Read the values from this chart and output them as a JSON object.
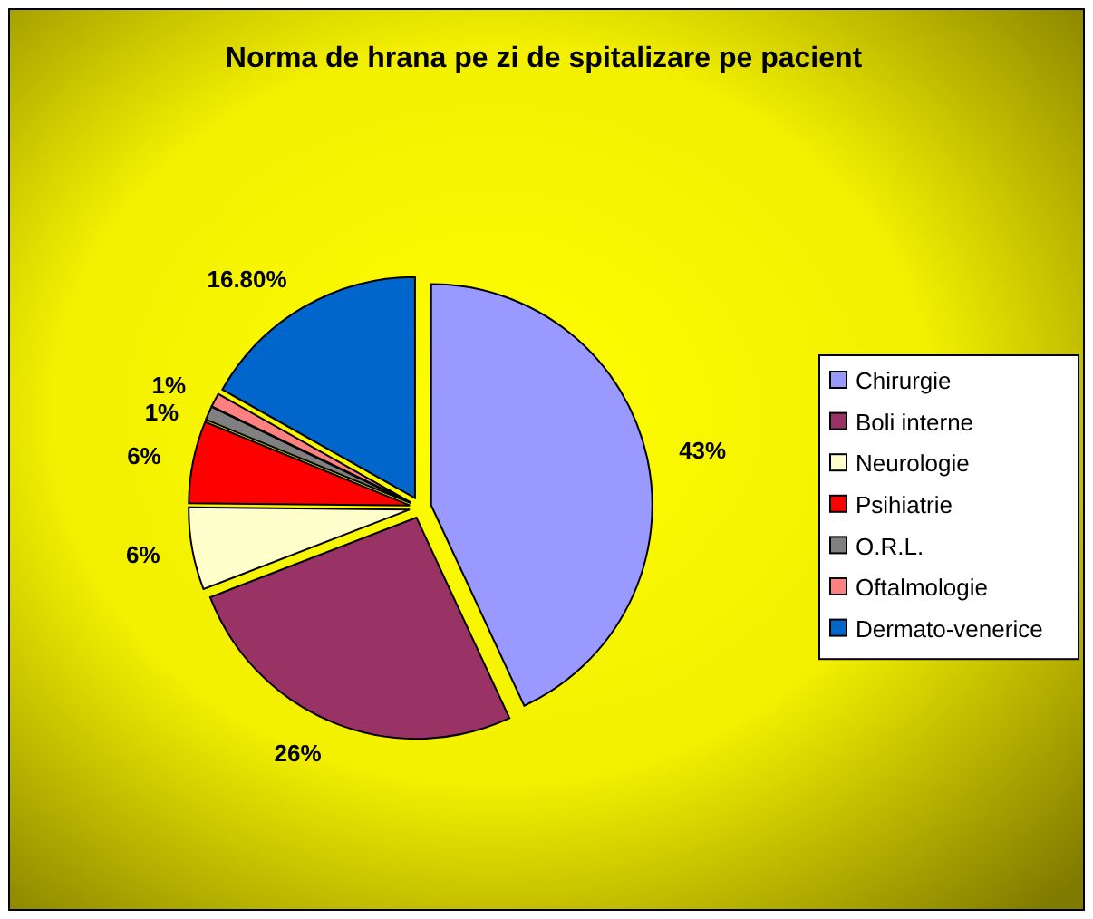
{
  "chart_data": {
    "type": "pie",
    "title": "Norma de hrana pe zi de spitalizare pe pacient",
    "categories": [
      "Chirurgie",
      "Boli interne",
      "Neurologie",
      "Psihiatrie",
      "O.R.L.",
      "Oftalmologie",
      "Dermato-venerice"
    ],
    "values": [
      43,
      26,
      6,
      6,
      1,
      1,
      16.8
    ],
    "value_labels": [
      "43%",
      "26%",
      "6%",
      "6%",
      "1%",
      "1%",
      "16.80%"
    ],
    "colors": [
      "#9999ff",
      "#993366",
      "#ffffcc",
      "#ff0000",
      "#808080",
      "#ff8080",
      "#0066cc"
    ],
    "legend": "right"
  }
}
